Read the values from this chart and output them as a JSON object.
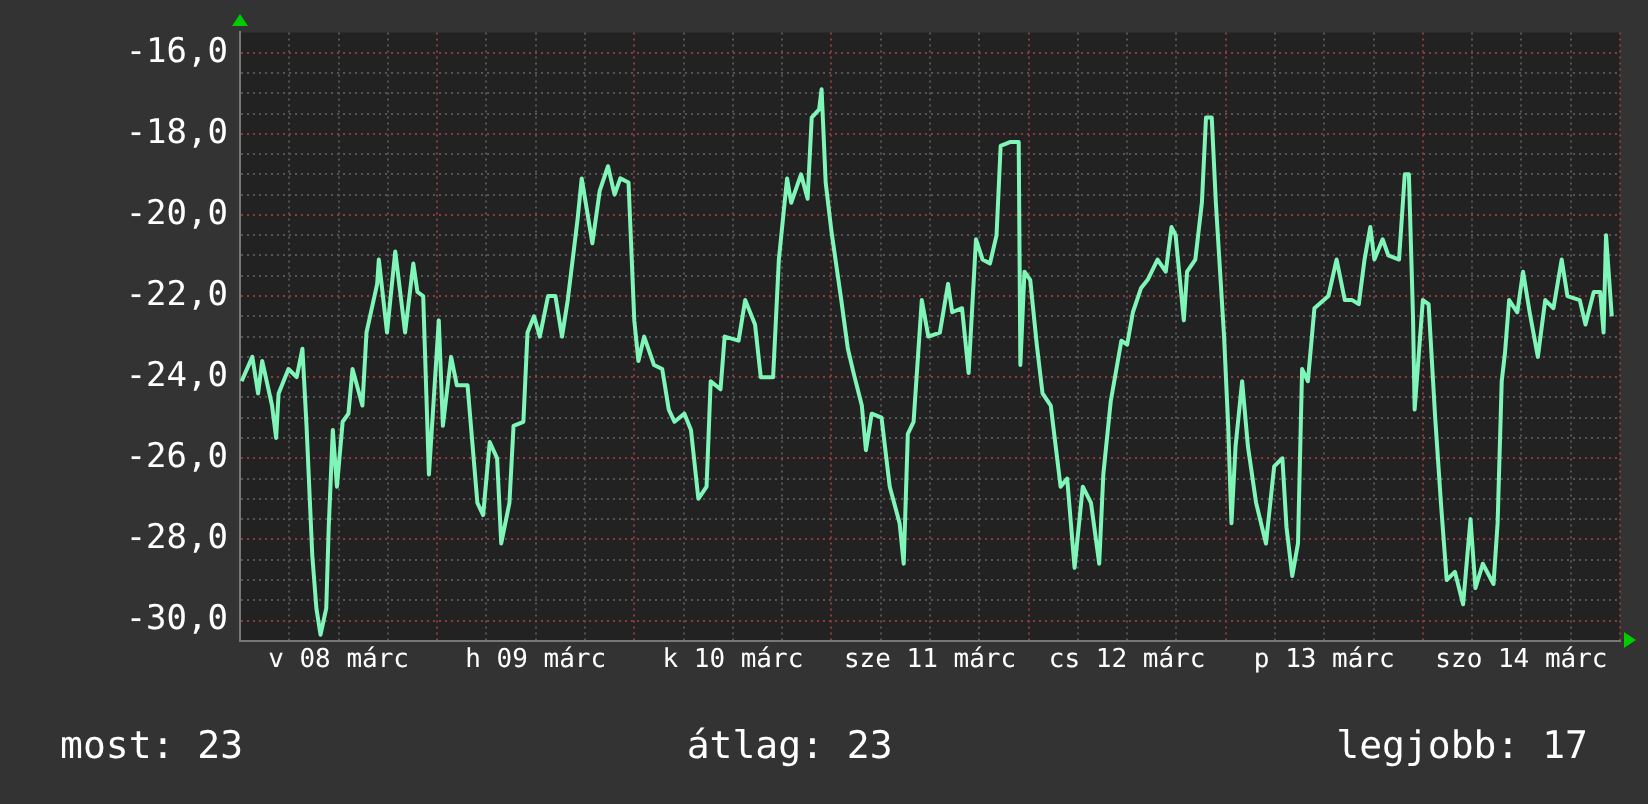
{
  "chart_data": {
    "type": "line",
    "xlim": [
      "--03-08T00:00",
      "--03-15T00:00"
    ],
    "ylim": [
      -30.5,
      -15.5
    ],
    "xticks": [
      {
        "value": "--03-08T00:00",
        "label": null
      },
      {
        "value": "--03-08T06:00",
        "label": null
      },
      {
        "value": "--03-08T12:00",
        "label": "v 08 márc"
      },
      {
        "value": "--03-08T18:00",
        "label": null
      },
      {
        "value": "--03-09T00:00",
        "label": null
      },
      {
        "value": "--03-09T06:00",
        "label": null
      },
      {
        "value": "--03-09T12:00",
        "label": "h 09 márc"
      },
      {
        "value": "--03-09T18:00",
        "label": null
      },
      {
        "value": "--03-10T00:00",
        "label": null
      },
      {
        "value": "--03-10T06:00",
        "label": null
      },
      {
        "value": "--03-10T12:00",
        "label": "k 10 márc"
      },
      {
        "value": "--03-10T18:00",
        "label": null
      },
      {
        "value": "--03-11T00:00",
        "label": null
      },
      {
        "value": "--03-11T06:00",
        "label": null
      },
      {
        "value": "--03-11T12:00",
        "label": "sze 11 márc"
      },
      {
        "value": "--03-11T18:00",
        "label": null
      },
      {
        "value": "--03-12T00:00",
        "label": null
      },
      {
        "value": "--03-12T06:00",
        "label": null
      },
      {
        "value": "--03-12T12:00",
        "label": "cs 12 márc"
      },
      {
        "value": "--03-12T18:00",
        "label": null
      },
      {
        "value": "--03-13T00:00",
        "label": null
      },
      {
        "value": "--03-13T06:00",
        "label": null
      },
      {
        "value": "--03-13T12:00",
        "label": "p 13 márc"
      },
      {
        "value": "--03-13T18:00",
        "label": null
      },
      {
        "value": "--03-14T00:00",
        "label": null
      },
      {
        "value": "--03-14T06:00",
        "label": null
      },
      {
        "value": "--03-14T12:00",
        "label": "szo 14 márc"
      },
      {
        "value": "--03-14T18:00",
        "label": null
      },
      {
        "value": "--03-15T00:00",
        "label": null
      }
    ],
    "yticks": [
      {
        "value": -30,
        "label": "-30,0"
      },
      {
        "value": -29.5,
        "label": null
      },
      {
        "value": -29,
        "label": null
      },
      {
        "value": -28.5,
        "label": null
      },
      {
        "value": -28,
        "label": "-28,0"
      },
      {
        "value": -27.5,
        "label": null
      },
      {
        "value": -27,
        "label": null
      },
      {
        "value": -26.5,
        "label": null
      },
      {
        "value": -26,
        "label": "-26,0"
      },
      {
        "value": -25.5,
        "label": null
      },
      {
        "value": -25,
        "label": null
      },
      {
        "value": -24.5,
        "label": null
      },
      {
        "value": -24,
        "label": "-24,0"
      },
      {
        "value": -23.5,
        "label": null
      },
      {
        "value": -23,
        "label": null
      },
      {
        "value": -22.5,
        "label": null
      },
      {
        "value": -22,
        "label": "-22,0"
      },
      {
        "value": -21.5,
        "label": null
      },
      {
        "value": -21,
        "label": null
      },
      {
        "value": -20.5,
        "label": null
      },
      {
        "value": -20,
        "label": "-20,0"
      },
      {
        "value": -19.5,
        "label": null
      },
      {
        "value": -19,
        "label": null
      },
      {
        "value": -18.5,
        "label": null
      },
      {
        "value": -18,
        "label": "-18,0"
      },
      {
        "value": -17.5,
        "label": null
      },
      {
        "value": -17,
        "label": null
      },
      {
        "value": -16.5,
        "label": null
      },
      {
        "value": -16,
        "label": "-16,0"
      }
    ],
    "grid": true,
    "legend": false,
    "marker": "none",
    "line_style": "solid",
    "annotations": [
      "most: 23",
      "átlag: 23",
      "legjobb: 17"
    ],
    "series": [
      {
        "color": "#7ff5b8",
        "x": [
          "--03-08T00:12",
          "--03-08T01:30",
          "--03-08T02:12",
          "--03-08T02:42",
          "--03-08T03:54",
          "--03-08T04:24",
          "--03-08T04:42",
          "--03-08T05:54",
          "--03-08T06:54",
          "--03-08T07:36",
          "--03-08T08:06",
          "--03-08T08:48",
          "--03-08T09:18",
          "--03-08T09:48",
          "--03-08T10:30",
          "--03-08T10:48",
          "--03-08T11:18",
          "--03-08T11:48",
          "--03-08T12:30",
          "--03-08T13:12",
          "--03-08T13:42",
          "--03-08T14:54",
          "--03-08T15:24",
          "--03-08T16:42",
          "--03-08T16:54",
          "--03-08T17:54",
          "--03-08T18:54",
          "--03-08T20:06",
          "--03-08T21:06",
          "--03-08T21:36",
          "--03-08T22:18",
          "--03-08T23:00",
          "--03-09T00:12",
          "--03-09T00:42",
          "--03-09T01:42",
          "--03-09T02:24",
          "--03-09T03:42",
          "--03-09T04:54",
          "--03-09T05:36",
          "--03-09T06:24",
          "--03-09T07:18",
          "--03-09T07:48",
          "--03-09T08:48",
          "--03-09T09:18",
          "--03-09T10:30",
          "--03-09T11:00",
          "--03-09T11:48",
          "--03-09T12:30",
          "--03-09T13:30",
          "--03-09T14:24",
          "--03-09T15:12",
          "--03-09T15:54",
          "--03-09T17:06",
          "--03-09T17:36",
          "--03-09T18:54",
          "--03-09T19:48",
          "--03-09T20:48",
          "--03-09T21:36",
          "--03-09T22:18",
          "--03-09T23:18",
          "--03-10T00:00",
          "--03-10T00:30",
          "--03-10T01:12",
          "--03-10T02:24",
          "--03-10T03:24",
          "--03-10T04:12",
          "--03-10T04:54",
          "--03-10T06:06",
          "--03-10T06:54",
          "--03-10T07:48",
          "--03-10T08:48",
          "--03-10T09:18",
          "--03-10T10:30",
          "--03-10T11:00",
          "--03-10T12:42",
          "--03-10T13:30",
          "--03-10T14:42",
          "--03-10T15:24",
          "--03-10T16:54",
          "--03-10T17:36",
          "--03-10T18:36",
          "--03-10T19:06",
          "--03-10T20:18",
          "--03-10T21:06",
          "--03-10T21:36",
          "--03-10T22:30",
          "--03-10T22:48",
          "--03-10T23:18",
          "--03-11T00:00",
          "--03-11T01:12",
          "--03-11T02:00",
          "--03-11T02:42",
          "--03-11T03:42",
          "--03-11T04:12",
          "--03-11T04:54",
          "--03-11T06:06",
          "--03-11T07:06",
          "--03-11T08:18",
          "--03-11T08:48",
          "--03-11T09:18",
          "--03-11T10:00",
          "--03-11T11:00",
          "--03-11T11:48",
          "--03-11T13:12",
          "--03-11T14:12",
          "--03-11T14:42",
          "--03-11T15:54",
          "--03-11T16:42",
          "--03-11T17:36",
          "--03-11T18:24",
          "--03-11T19:18",
          "--03-11T20:06",
          "--03-11T20:36",
          "--03-11T21:48",
          "--03-11T22:48",
          "--03-11T23:00",
          "--03-11T23:30",
          "--03-12T00:12",
          "--03-12T01:00",
          "--03-12T01:42",
          "--03-12T02:42",
          "--03-12T03:54",
          "--03-12T04:42",
          "--03-12T05:36",
          "--03-12T06:36",
          "--03-12T07:36",
          "--03-12T08:36",
          "--03-12T09:06",
          "--03-12T10:00",
          "--03-12T11:18",
          "--03-12T12:00",
          "--03-12T12:42",
          "--03-12T13:42",
          "--03-12T14:30",
          "--03-12T15:42",
          "--03-12T16:42",
          "--03-12T17:24",
          "--03-12T17:54",
          "--03-12T18:54",
          "--03-12T19:18",
          "--03-12T20:18",
          "--03-12T21:06",
          "--03-12T21:36",
          "--03-12T22:18",
          "--03-12T22:48",
          "--03-12T23:48",
          "--03-13T00:18",
          "--03-13T00:42",
          "--03-13T01:12",
          "--03-13T02:00",
          "--03-13T02:42",
          "--03-13T03:42",
          "--03-13T04:54",
          "--03-13T05:54",
          "--03-13T06:54",
          "--03-13T07:24",
          "--03-13T08:06",
          "--03-13T08:48",
          "--03-13T09:18",
          "--03-13T10:00",
          "--03-13T10:48",
          "--03-13T12:30",
          "--03-13T13:30",
          "--03-13T14:30",
          "--03-13T15:24",
          "--03-13T16:12",
          "--03-13T16:54",
          "--03-13T17:36",
          "--03-13T18:06",
          "--03-13T19:06",
          "--03-13T19:48",
          "--03-13T21:06",
          "--03-13T21:48",
          "--03-13T22:18",
          "--03-13T22:48",
          "--03-13T23:00",
          "--03-14T00:00",
          "--03-14T00:42",
          "--03-14T01:30",
          "--03-14T02:12",
          "--03-14T02:54",
          "--03-14T03:54",
          "--03-14T04:54",
          "--03-14T05:48",
          "--03-14T06:24",
          "--03-14T07:18",
          "--03-14T08:36",
          "--03-14T09:06",
          "--03-14T09:36",
          "--03-14T10:00",
          "--03-14T10:30",
          "--03-14T11:30",
          "--03-14T12:12",
          "--03-14T13:00",
          "--03-14T14:00",
          "--03-14T14:54",
          "--03-14T15:54",
          "--03-14T16:54",
          "--03-14T17:36",
          "--03-14T19:06",
          "--03-14T19:48",
          "--03-14T20:48",
          "--03-14T21:36",
          "--03-14T22:00",
          "--03-14T22:18",
          "--03-14T23:00"
        ],
        "values": [
          -24.1,
          -23.5,
          -24.4,
          -23.6,
          -24.7,
          -25.5,
          -24.4,
          -23.8,
          -24.0,
          -23.3,
          -25.2,
          -28.4,
          -29.7,
          -30.35,
          -29.7,
          -27.7,
          -25.3,
          -26.7,
          -25.1,
          -24.9,
          -23.8,
          -24.7,
          -22.9,
          -21.7,
          -21.1,
          -22.9,
          -20.9,
          -22.9,
          -21.2,
          -21.9,
          -22.0,
          -26.4,
          -22.6,
          -25.2,
          -23.5,
          -24.2,
          -24.2,
          -27.1,
          -27.4,
          -25.6,
          -26.0,
          -28.1,
          -27.1,
          -25.2,
          -25.1,
          -22.9,
          -22.5,
          -23.0,
          -22.0,
          -22.0,
          -23.0,
          -22.1,
          -20.1,
          -19.1,
          -20.7,
          -19.4,
          -18.8,
          -19.5,
          -19.1,
          -19.2,
          -22.6,
          -23.6,
          -23.0,
          -23.7,
          -23.8,
          -24.8,
          -25.1,
          -24.9,
          -25.3,
          -27.0,
          -26.7,
          -24.1,
          -24.3,
          -23.0,
          -23.1,
          -22.1,
          -22.7,
          -24.0,
          -24.0,
          -21.1,
          -19.1,
          -19.7,
          -19.0,
          -19.6,
          -17.6,
          -17.4,
          -16.9,
          -19.2,
          -20.4,
          -22.1,
          -23.3,
          -23.9,
          -24.7,
          -25.8,
          -24.9,
          -25.0,
          -26.7,
          -27.6,
          -28.6,
          -25.4,
          -25.1,
          -22.1,
          -23.0,
          -22.9,
          -21.7,
          -22.4,
          -22.3,
          -23.9,
          -20.6,
          -21.1,
          -21.2,
          -20.5,
          -18.3,
          -18.2,
          -18.2,
          -23.7,
          -21.4,
          -21.6,
          -23.2,
          -24.4,
          -24.7,
          -26.7,
          -26.5,
          -28.7,
          -26.7,
          -27.1,
          -28.6,
          -26.4,
          -24.6,
          -23.1,
          -23.2,
          -22.4,
          -21.8,
          -21.6,
          -21.1,
          -21.4,
          -20.3,
          -20.5,
          -22.6,
          -21.4,
          -21.1,
          -19.7,
          -17.6,
          -17.6,
          -19.7,
          -23.0,
          -25.2,
          -27.6,
          -25.7,
          -24.1,
          -25.7,
          -27.1,
          -28.1,
          -26.2,
          -26.0,
          -27.7,
          -28.9,
          -28.1,
          -23.8,
          -24.1,
          -22.3,
          -22.0,
          -21.1,
          -22.1,
          -22.1,
          -22.2,
          -21.1,
          -20.3,
          -21.1,
          -20.6,
          -21.0,
          -21.1,
          -19.0,
          -19.0,
          -22.5,
          -24.8,
          -22.1,
          -22.2,
          -25.0,
          -27.1,
          -29.0,
          -28.8,
          -29.6,
          -27.5,
          -29.2,
          -28.6,
          -29.1,
          -27.6,
          -24.1,
          -23.4,
          -22.1,
          -22.4,
          -21.4,
          -22.4,
          -23.5,
          -22.1,
          -22.3,
          -21.1,
          -22.0,
          -22.1,
          -22.7,
          -21.9,
          -21.9,
          -22.9,
          -20.5,
          -22.5
        ]
      }
    ]
  }
}
